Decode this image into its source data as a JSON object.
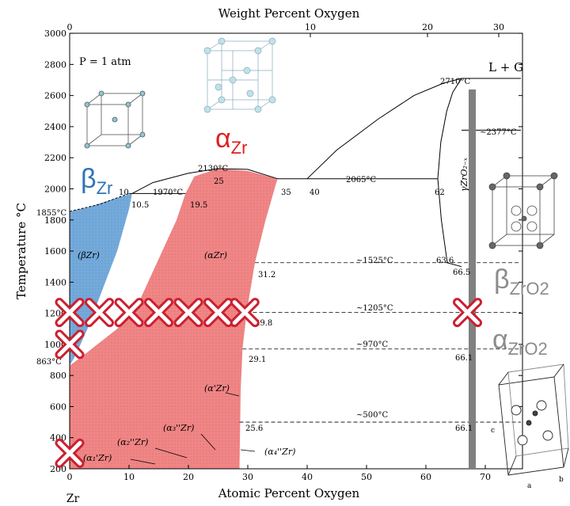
{
  "top_axis": {
    "title": "Weight Percent Oxygen",
    "ticks": [
      {
        "value": 0,
        "label": "0"
      },
      {
        "value": 10,
        "label": "10"
      },
      {
        "value": 20,
        "label": "20"
      },
      {
        "value": 30,
        "label": "30"
      }
    ]
  },
  "x_axis": {
    "title": "Atomic Percent Oxygen",
    "min": 0,
    "max": 76,
    "ticks": [
      0,
      10,
      20,
      30,
      40,
      50,
      60,
      70
    ],
    "left_element": "Zr"
  },
  "y_axis": {
    "title": "Temperature °C",
    "min": 200,
    "max": 3000,
    "ticks": [
      200,
      400,
      600,
      800,
      1000,
      1200,
      1400,
      1600,
      1800,
      2000,
      2200,
      2400,
      2600,
      2800,
      3000
    ]
  },
  "pressure_label": "P = 1 atm",
  "liquid_gas_label": "L + G",
  "phase_labels": {
    "beta_zr_region": "(βZr)",
    "alpha_zr_region": "(αZr)",
    "alpha_prime": "(α'Zr)",
    "alpha1": "(α₁'Zr)",
    "alpha2": "(α₂''Zr)",
    "alpha3": "(α₃''Zr)",
    "alpha4": "(α₄''Zr)",
    "zro2": "γZrO₂₋ₓ"
  },
  "big_labels": {
    "beta_zr": {
      "main": "β",
      "sub": "Zr"
    },
    "alpha_zr": {
      "main": "α",
      "sub": "Zr"
    },
    "beta_zro2": {
      "main": "β",
      "sub": "ZrO2"
    },
    "alpha_zro2": {
      "main": "α",
      "sub": "ZrO2"
    }
  },
  "temperature_labels": {
    "t2710": "2710°C",
    "t2377": "~2377°C",
    "t2130": "2130°C",
    "t2065": "2065°C",
    "t1970": "1970°C",
    "t1855": "1855°C",
    "t1525": "~1525°C",
    "t1205": "~1205°C",
    "t970": "~970°C",
    "t863": "863°C",
    "t500": "~500°C"
  },
  "composition_labels": {
    "c10": "10",
    "c10_5": "10.5",
    "c19_5": "19.5",
    "c25": "25",
    "c35": "35",
    "c40": "40",
    "c62": "62",
    "c63_6": "63.6",
    "c66_5": "66.5",
    "c66_1a": "66.1",
    "c66_1b": "66.1",
    "c31_2": "31.2",
    "c29_8": "29.8",
    "c29_1": "29.1",
    "c25_6": "25.6"
  },
  "markers": [
    {
      "x": 0,
      "y": 1205
    },
    {
      "x": 5,
      "y": 1205
    },
    {
      "x": 10,
      "y": 1205
    },
    {
      "x": 15,
      "y": 1205
    },
    {
      "x": 20,
      "y": 1205
    },
    {
      "x": 25,
      "y": 1205
    },
    {
      "x": 29.5,
      "y": 1205
    },
    {
      "x": 0,
      "y": 1000
    },
    {
      "x": 0,
      "y": 300
    },
    {
      "x": 67,
      "y": 1205
    }
  ],
  "colors": {
    "beta_region": "#5a9bd5",
    "alpha_region": "#f07878",
    "marker": "#cc2030",
    "beta_label": "#2e75b6",
    "alpha_label": "#e02020",
    "zro2_label": "#8c8c8c",
    "zro2_bar": "#808080"
  }
}
